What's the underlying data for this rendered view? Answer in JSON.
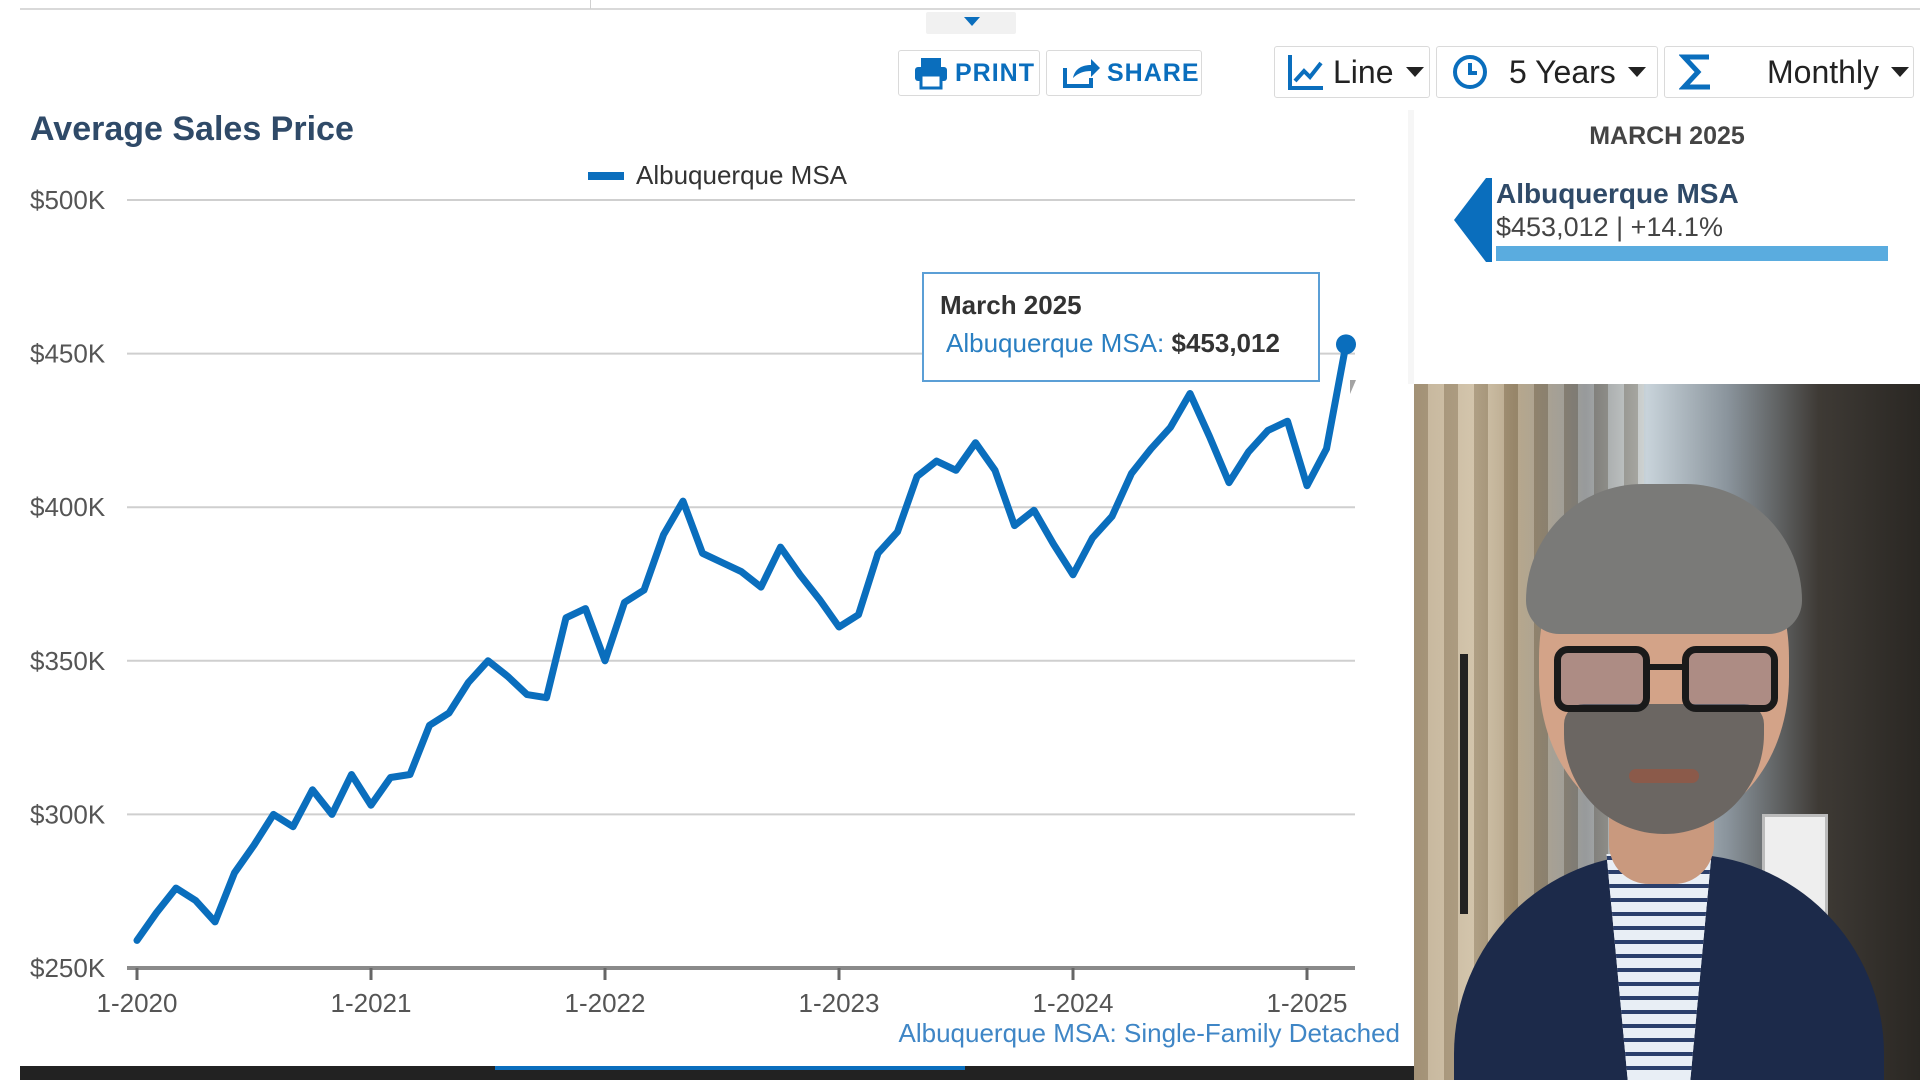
{
  "toolbar": {
    "print_label": "PRINT",
    "share_label": "SHARE",
    "chart_type": "Line",
    "time_range": "5 Years",
    "interval": "Monthly"
  },
  "chart_data": {
    "type": "line",
    "title": "Average Sales Price",
    "subtitle": "Albuquerque MSA: Single-Family Detached",
    "xlabel": "",
    "ylabel": "",
    "x_tick_labels": [
      "1-2020",
      "1-2021",
      "1-2022",
      "1-2023",
      "1-2024",
      "1-2025"
    ],
    "y_tick_labels": [
      "$250K",
      "$300K",
      "$350K",
      "$400K",
      "$450K",
      "$500K"
    ],
    "ylim": [
      250000,
      500000
    ],
    "x_start": "2020-01",
    "x_end": "2025-03",
    "legend_position": "top-center",
    "grid": true,
    "series": [
      {
        "name": "Albuquerque MSA",
        "color": "#0a6ebd",
        "values": [
          259000,
          268000,
          276000,
          272000,
          265000,
          281000,
          290000,
          300000,
          296000,
          308000,
          300000,
          313000,
          303000,
          312000,
          313000,
          329000,
          333000,
          343000,
          350000,
          345000,
          339000,
          338000,
          364000,
          367000,
          350000,
          369000,
          373000,
          391000,
          402000,
          385000,
          382000,
          379000,
          374000,
          387000,
          378000,
          370000,
          361000,
          365000,
          385000,
          392000,
          410000,
          415000,
          412000,
          421000,
          412000,
          394000,
          399000,
          388000,
          378000,
          390000,
          397000,
          411000,
          419000,
          426000,
          437000,
          423000,
          408000,
          418000,
          425000,
          428000,
          407000,
          419000,
          453012
        ]
      }
    ]
  },
  "tooltip": {
    "date": "March 2025",
    "series_label": "Albuquerque MSA:",
    "value": "$453,012"
  },
  "summary_panel": {
    "month": "MARCH 2025",
    "series_name": "Albuquerque MSA",
    "value_text": "$453,012 | +14.1%"
  }
}
